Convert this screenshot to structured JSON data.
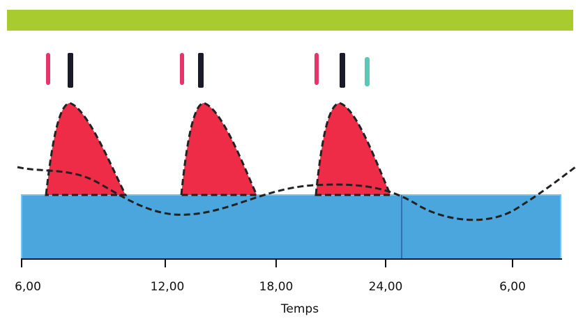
{
  "axis": {
    "label": "Temps",
    "ticks": [
      "6,00",
      "12,00",
      "18,00",
      "24,00",
      "6,00"
    ]
  }
}
